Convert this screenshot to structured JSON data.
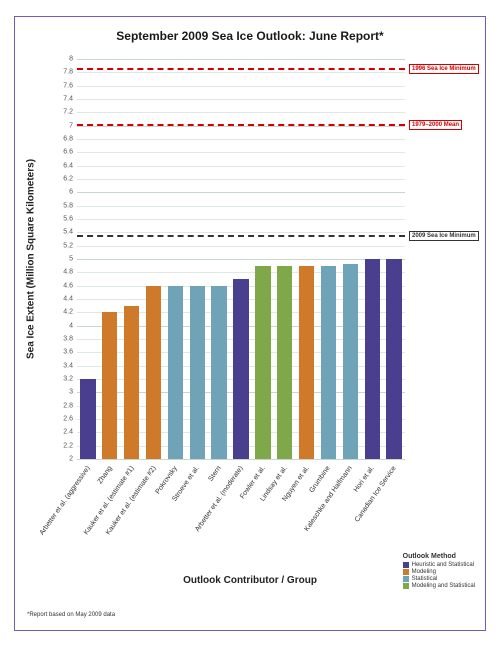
{
  "chart": {
    "type": "bar",
    "title": "September 2009 Sea Ice Outlook: June Report*",
    "footnote": "*Report based on May 2009 data",
    "xaxis_title": "Outlook Contributor / Group",
    "yaxis_title": "Sea Ice Extent (Million Square Kilometers)",
    "title_fontsize": 12,
    "axis_title_fontsize": 10,
    "tick_fontsize": 7,
    "ylim": [
      2,
      8
    ],
    "ytick_step": 0.2,
    "grid_color": "#c9d6ce",
    "minor_grid_color": "#e0e8e3",
    "background_color": "#ffffff",
    "frame_border_color": "#6a5fbf",
    "bar_rel_width": 0.7,
    "categories": [
      "Arbetter et al. (aggressive)",
      "Zhang",
      "Kauker et al. (estimate #1)",
      "Kauker et al. (estimate #2)",
      "Pokrovsky",
      "Stroeve et al.",
      "Stern",
      "Arbetter et al. (moderate)",
      "Fowler et al.",
      "Lindsay et al.",
      "Nguyen et al.",
      "Grumbine",
      "Kaleschke and Halfmann",
      "Hori et al.",
      "Canadian Ice Service"
    ],
    "values": [
      3.2,
      4.2,
      4.3,
      4.6,
      4.6,
      4.6,
      4.6,
      4.7,
      4.9,
      4.9,
      4.9,
      4.9,
      4.92,
      5.0,
      5.0
    ],
    "method_index": [
      0,
      1,
      1,
      1,
      2,
      2,
      2,
      0,
      3,
      3,
      1,
      2,
      2,
      0,
      0
    ],
    "method_colors": [
      "#4a3f8f",
      "#cf7a2a",
      "#6fa3b8",
      "#7fa84a"
    ],
    "methods": [
      "Heuristic and Statistical",
      "Modeling",
      "Statistical",
      "Modeling and Statistical"
    ],
    "legend_title": "Outlook Method",
    "reference_lines": [
      {
        "label": "1996 Sea Ice Minimum",
        "value": 7.87,
        "color": "#d40000",
        "label_color": "#d40000"
      },
      {
        "label": "1979–2000 Mean",
        "value": 7.03,
        "color": "#d40000",
        "label_color": "#d40000"
      },
      {
        "label": "2009 Sea Ice Minimum",
        "value": 5.36,
        "color": "#333333",
        "label_color": "#333333"
      }
    ]
  }
}
